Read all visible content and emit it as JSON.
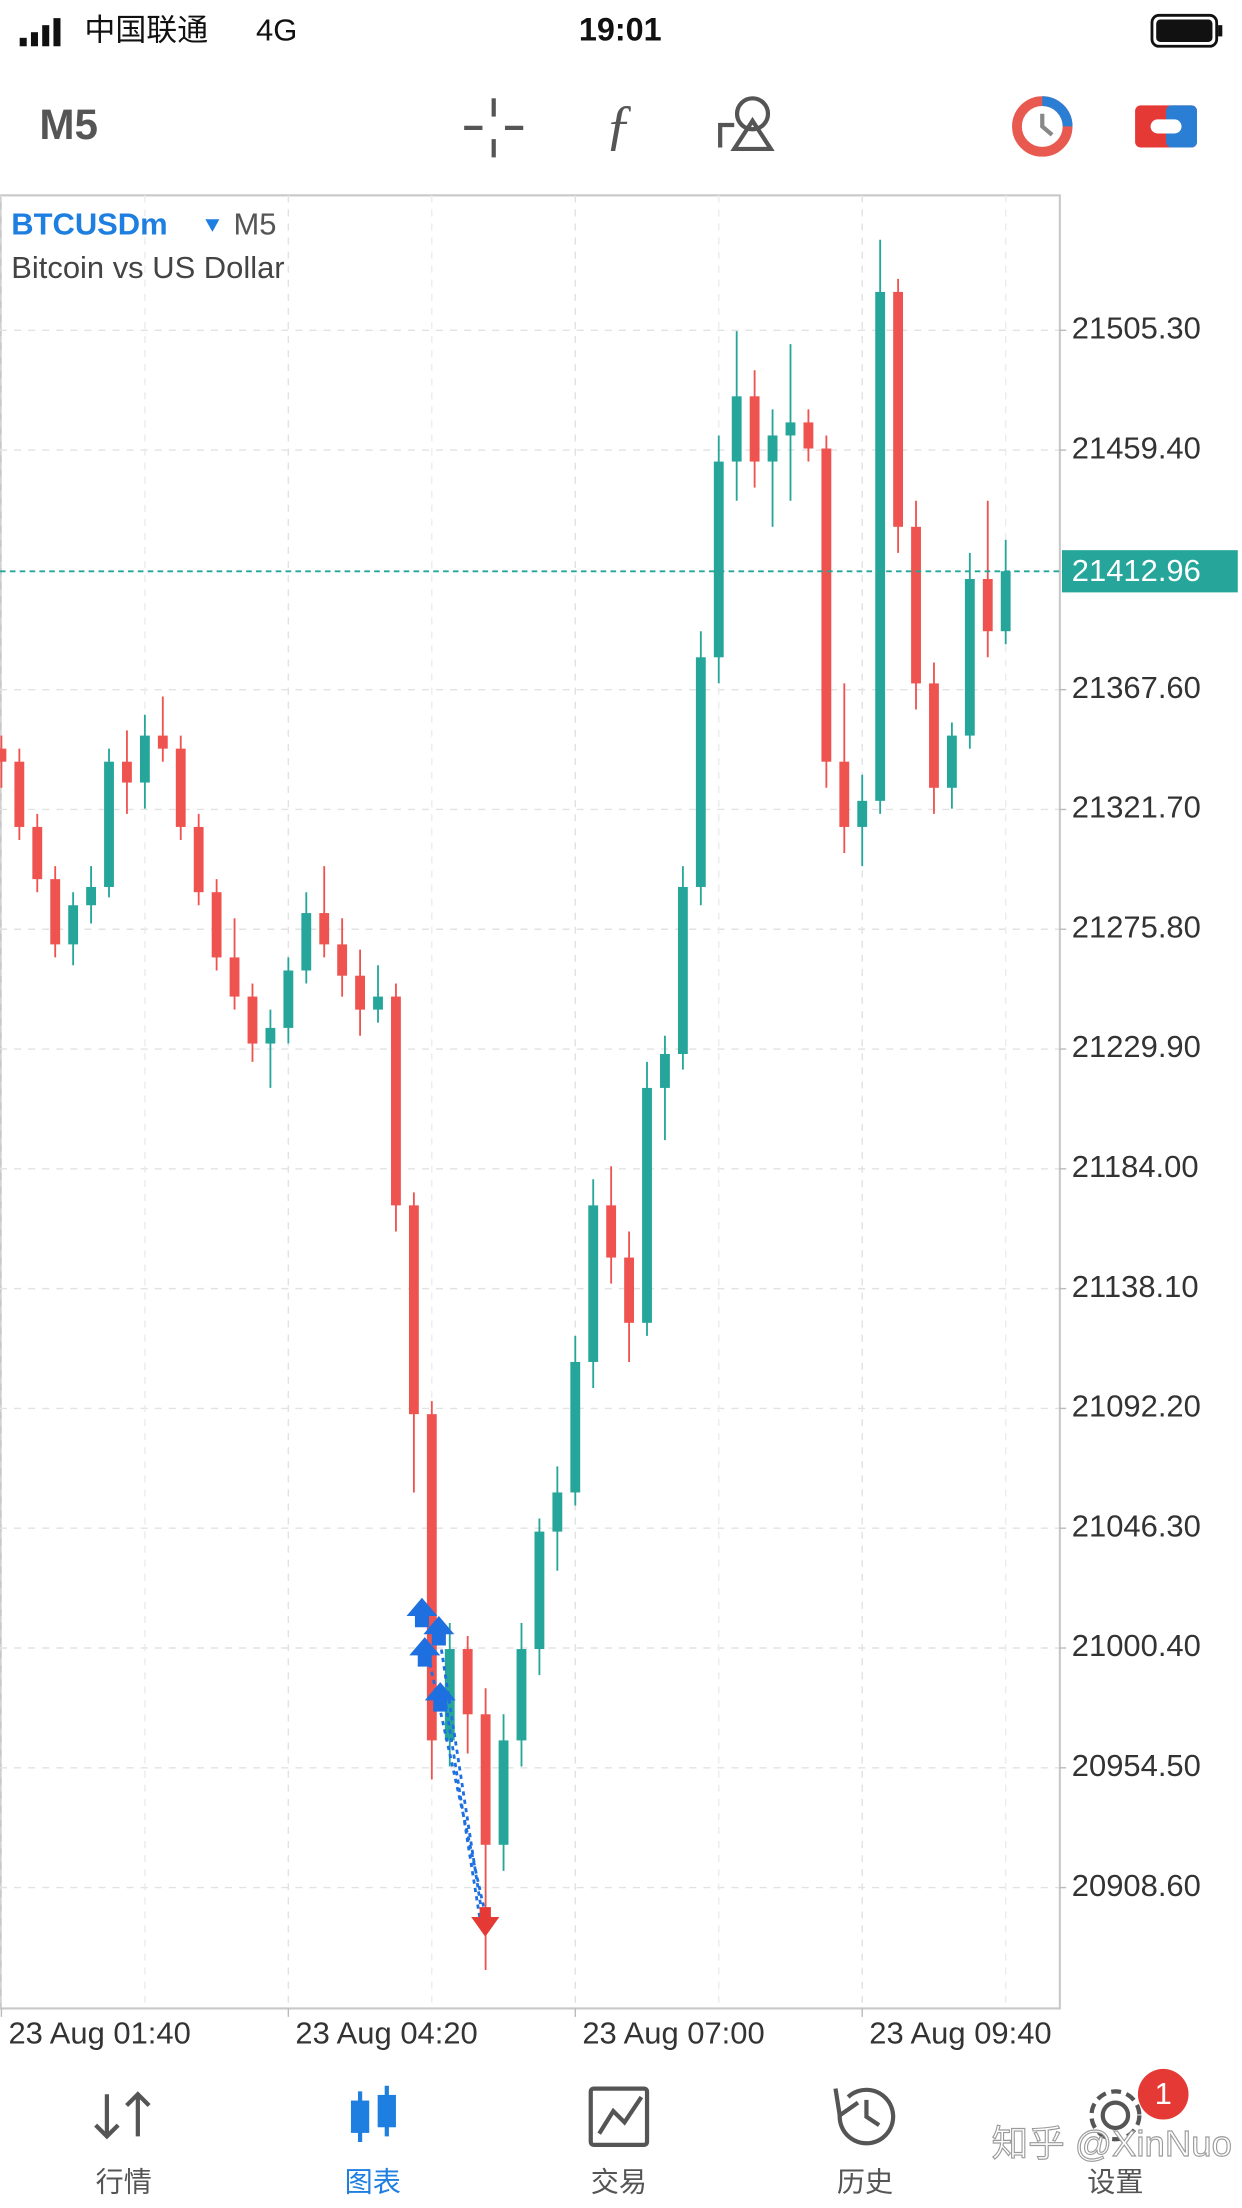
{
  "status_bar": {
    "carrier": "中国联通",
    "network": "4G",
    "time": "19:01"
  },
  "toolbar": {
    "timeframe": "M5"
  },
  "chart_data": {
    "type": "candlestick",
    "symbol": "BTCUSDm",
    "timeframe": "M5",
    "description": "Bitcoin vs US Dollar",
    "categories": [
      "23 Aug 01:40",
      null,
      null,
      null,
      null,
      null,
      null,
      null,
      null,
      null,
      null,
      null,
      null,
      null,
      null,
      null,
      "23 Aug 04:20",
      null,
      null,
      null,
      null,
      null,
      null,
      null,
      null,
      null,
      null,
      null,
      null,
      null,
      null,
      null,
      "23 Aug 07:00",
      null,
      null,
      null,
      null,
      null,
      null,
      null,
      null,
      null,
      null,
      null,
      null,
      null,
      null,
      null,
      "23 Aug 09:40",
      null,
      null,
      null,
      null,
      null,
      null,
      null,
      null
    ],
    "open": [
      21345,
      21340,
      21315,
      21295,
      21270,
      21285,
      21292,
      21340,
      21332,
      21350,
      21345,
      21315,
      21290,
      21265,
      21250,
      21232,
      21238,
      21260,
      21282,
      21270,
      21258,
      21245,
      21250,
      21170,
      21090,
      20965,
      21000,
      20975,
      20925,
      20965,
      21000,
      21045,
      21060,
      21110,
      21170,
      21150,
      21125,
      21215,
      21228,
      21292,
      21380,
      21455,
      21480,
      21455,
      21465,
      21470,
      21460,
      21340,
      21315,
      21325,
      21520,
      21430,
      21370,
      21330,
      21350,
      21410,
      21390
    ],
    "high": [
      21350,
      21345,
      21320,
      21300,
      21290,
      21300,
      21345,
      21352,
      21358,
      21365,
      21350,
      21320,
      21295,
      21280,
      21255,
      21245,
      21265,
      21290,
      21300,
      21280,
      21268,
      21262,
      21255,
      21175,
      21095,
      21010,
      21005,
      20985,
      20975,
      21010,
      21050,
      21070,
      21120,
      21180,
      21185,
      21160,
      21225,
      21235,
      21300,
      21390,
      21465,
      21505,
      21490,
      21475,
      21500,
      21475,
      21465,
      21370,
      21335,
      21540,
      21525,
      21440,
      21378,
      21355,
      21420,
      21440,
      21425
    ],
    "low": [
      21330,
      21310,
      21290,
      21265,
      21262,
      21278,
      21288,
      21320,
      21322,
      21340,
      21310,
      21285,
      21260,
      21245,
      21225,
      21215,
      21232,
      21255,
      21265,
      21250,
      21235,
      21240,
      21160,
      21060,
      20950,
      20955,
      20960,
      20877,
      20915,
      20955,
      20990,
      21030,
      21055,
      21100,
      21140,
      21110,
      21120,
      21195,
      21222,
      21285,
      21370,
      21440,
      21445,
      21430,
      21440,
      21455,
      21330,
      21305,
      21300,
      21320,
      21420,
      21360,
      21320,
      21322,
      21345,
      21380,
      21385
    ],
    "close": [
      21340,
      21315,
      21295,
      21270,
      21285,
      21292,
      21340,
      21332,
      21350,
      21345,
      21315,
      21290,
      21265,
      21250,
      21232,
      21238,
      21260,
      21282,
      21270,
      21258,
      21245,
      21250,
      21170,
      21090,
      20965,
      21000,
      20975,
      20925,
      20965,
      21000,
      21045,
      21060,
      21110,
      21170,
      21150,
      21125,
      21215,
      21228,
      21292,
      21380,
      21455,
      21480,
      21455,
      21465,
      21470,
      21460,
      21340,
      21315,
      21325,
      21520,
      21430,
      21370,
      21330,
      21350,
      21410,
      21390,
      21413
    ],
    "up_color": "#26a69a",
    "down_color": "#ef5350",
    "ylim": [
      20862.3,
      21557
    ],
    "yticks": [
      {
        "value": 21505.3,
        "label": "21505.30"
      },
      {
        "value": 21459.4,
        "label": "21459.40"
      },
      {
        "value": 21367.6,
        "label": "21367.60"
      },
      {
        "value": 21321.7,
        "label": "21321.70"
      },
      {
        "value": 21275.8,
        "label": "21275.80"
      },
      {
        "value": 21229.9,
        "label": "21229.90"
      },
      {
        "value": 21184,
        "label": "21184.00"
      },
      {
        "value": 21138.1,
        "label": "21138.10"
      },
      {
        "value": 21092.2,
        "label": "21092.20"
      },
      {
        "value": 21046.3,
        "label": "21046.30"
      },
      {
        "value": 21000.4,
        "label": "21000.40"
      },
      {
        "value": 20954.5,
        "label": "20954.50"
      },
      {
        "value": 20908.6,
        "label": "20908.60"
      }
    ],
    "current_price": 21412.96,
    "current_price_color": "#26a69a",
    "grid": true
  },
  "tab_bar": {
    "items": [
      "行情",
      "图表",
      "交易",
      "历史",
      "设置"
    ],
    "active": 1,
    "badge": "1"
  },
  "watermark": "知乎 @XinNuo"
}
